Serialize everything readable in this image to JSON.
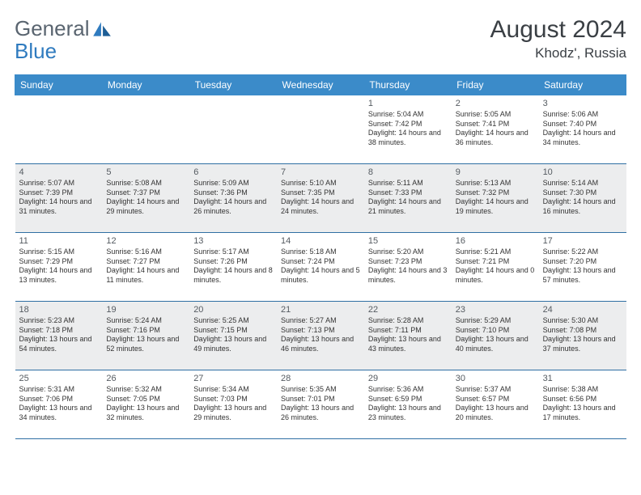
{
  "brand": {
    "word1": "General",
    "word2": "Blue"
  },
  "title": {
    "month": "August 2024",
    "location": "Khodz', Russia"
  },
  "weekday_header_bg": "#3b8bc9",
  "weekday_header_fg": "#ffffff",
  "shade_bg": "#ecedee",
  "rule_color": "#2f6fa3",
  "weekdays": [
    "Sunday",
    "Monday",
    "Tuesday",
    "Wednesday",
    "Thursday",
    "Friday",
    "Saturday"
  ],
  "weeks": [
    {
      "shaded": false,
      "days": [
        null,
        null,
        null,
        null,
        {
          "n": "1",
          "sunrise": "5:04 AM",
          "sunset": "7:42 PM",
          "dl": "14 hours and 38 minutes."
        },
        {
          "n": "2",
          "sunrise": "5:05 AM",
          "sunset": "7:41 PM",
          "dl": "14 hours and 36 minutes."
        },
        {
          "n": "3",
          "sunrise": "5:06 AM",
          "sunset": "7:40 PM",
          "dl": "14 hours and 34 minutes."
        }
      ]
    },
    {
      "shaded": true,
      "days": [
        {
          "n": "4",
          "sunrise": "5:07 AM",
          "sunset": "7:39 PM",
          "dl": "14 hours and 31 minutes."
        },
        {
          "n": "5",
          "sunrise": "5:08 AM",
          "sunset": "7:37 PM",
          "dl": "14 hours and 29 minutes."
        },
        {
          "n": "6",
          "sunrise": "5:09 AM",
          "sunset": "7:36 PM",
          "dl": "14 hours and 26 minutes."
        },
        {
          "n": "7",
          "sunrise": "5:10 AM",
          "sunset": "7:35 PM",
          "dl": "14 hours and 24 minutes."
        },
        {
          "n": "8",
          "sunrise": "5:11 AM",
          "sunset": "7:33 PM",
          "dl": "14 hours and 21 minutes."
        },
        {
          "n": "9",
          "sunrise": "5:13 AM",
          "sunset": "7:32 PM",
          "dl": "14 hours and 19 minutes."
        },
        {
          "n": "10",
          "sunrise": "5:14 AM",
          "sunset": "7:30 PM",
          "dl": "14 hours and 16 minutes."
        }
      ]
    },
    {
      "shaded": false,
      "days": [
        {
          "n": "11",
          "sunrise": "5:15 AM",
          "sunset": "7:29 PM",
          "dl": "14 hours and 13 minutes."
        },
        {
          "n": "12",
          "sunrise": "5:16 AM",
          "sunset": "7:27 PM",
          "dl": "14 hours and 11 minutes."
        },
        {
          "n": "13",
          "sunrise": "5:17 AM",
          "sunset": "7:26 PM",
          "dl": "14 hours and 8 minutes."
        },
        {
          "n": "14",
          "sunrise": "5:18 AM",
          "sunset": "7:24 PM",
          "dl": "14 hours and 5 minutes."
        },
        {
          "n": "15",
          "sunrise": "5:20 AM",
          "sunset": "7:23 PM",
          "dl": "14 hours and 3 minutes."
        },
        {
          "n": "16",
          "sunrise": "5:21 AM",
          "sunset": "7:21 PM",
          "dl": "14 hours and 0 minutes."
        },
        {
          "n": "17",
          "sunrise": "5:22 AM",
          "sunset": "7:20 PM",
          "dl": "13 hours and 57 minutes."
        }
      ]
    },
    {
      "shaded": true,
      "days": [
        {
          "n": "18",
          "sunrise": "5:23 AM",
          "sunset": "7:18 PM",
          "dl": "13 hours and 54 minutes."
        },
        {
          "n": "19",
          "sunrise": "5:24 AM",
          "sunset": "7:16 PM",
          "dl": "13 hours and 52 minutes."
        },
        {
          "n": "20",
          "sunrise": "5:25 AM",
          "sunset": "7:15 PM",
          "dl": "13 hours and 49 minutes."
        },
        {
          "n": "21",
          "sunrise": "5:27 AM",
          "sunset": "7:13 PM",
          "dl": "13 hours and 46 minutes."
        },
        {
          "n": "22",
          "sunrise": "5:28 AM",
          "sunset": "7:11 PM",
          "dl": "13 hours and 43 minutes."
        },
        {
          "n": "23",
          "sunrise": "5:29 AM",
          "sunset": "7:10 PM",
          "dl": "13 hours and 40 minutes."
        },
        {
          "n": "24",
          "sunrise": "5:30 AM",
          "sunset": "7:08 PM",
          "dl": "13 hours and 37 minutes."
        }
      ]
    },
    {
      "shaded": false,
      "days": [
        {
          "n": "25",
          "sunrise": "5:31 AM",
          "sunset": "7:06 PM",
          "dl": "13 hours and 34 minutes."
        },
        {
          "n": "26",
          "sunrise": "5:32 AM",
          "sunset": "7:05 PM",
          "dl": "13 hours and 32 minutes."
        },
        {
          "n": "27",
          "sunrise": "5:34 AM",
          "sunset": "7:03 PM",
          "dl": "13 hours and 29 minutes."
        },
        {
          "n": "28",
          "sunrise": "5:35 AM",
          "sunset": "7:01 PM",
          "dl": "13 hours and 26 minutes."
        },
        {
          "n": "29",
          "sunrise": "5:36 AM",
          "sunset": "6:59 PM",
          "dl": "13 hours and 23 minutes."
        },
        {
          "n": "30",
          "sunrise": "5:37 AM",
          "sunset": "6:57 PM",
          "dl": "13 hours and 20 minutes."
        },
        {
          "n": "31",
          "sunrise": "5:38 AM",
          "sunset": "6:56 PM",
          "dl": "13 hours and 17 minutes."
        }
      ]
    }
  ],
  "labels": {
    "sunrise": "Sunrise: ",
    "sunset": "Sunset: ",
    "daylight": "Daylight: "
  }
}
